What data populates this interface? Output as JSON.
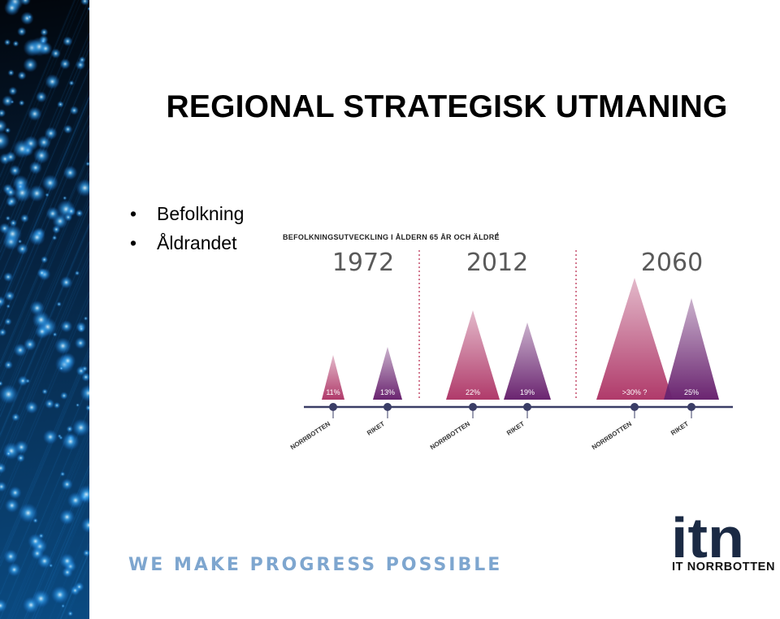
{
  "slide": {
    "title": "REGIONAL STRATEGISK UTMANING",
    "bullets": [
      "Befolkning",
      "Åldrandet"
    ],
    "tagline": "WE MAKE PROGRESS POSSIBLE",
    "logo_text": "itn",
    "logo_subtext": "IT NORRBOTTEN"
  },
  "colors": {
    "norrbotten": "#b03a6a",
    "riket": "#6a2470",
    "axis": "#3a3d66",
    "accent_blue": "#1e90e0"
  },
  "icons": {
    "side_image": "fiber-optic-lights-image",
    "logo": "itn-logo-icon"
  },
  "chart_data": {
    "type": "bar",
    "title": "BEFOLKNINGSUTVECKLING I ÅLDERN 65 ÅR OCH ÄLDRE",
    "title_marker": "4",
    "groups": [
      {
        "year": "1972",
        "items": [
          {
            "name": "NORRBOTTEN",
            "value": 11,
            "label": "11%"
          },
          {
            "name": "RIKET",
            "value": 13,
            "label": "13%"
          }
        ]
      },
      {
        "year": "2012",
        "items": [
          {
            "name": "NORRBOTTEN",
            "value": 22,
            "label": "22%"
          },
          {
            "name": "RIKET",
            "value": 19,
            "label": "19%"
          }
        ]
      },
      {
        "year": "2060",
        "items": [
          {
            "name": "NORRBOTTEN",
            "value": 30,
            "label": ">30% ?"
          },
          {
            "name": "RIKET",
            "value": 25,
            "label": "25%"
          }
        ]
      }
    ],
    "ylim": [
      0,
      32
    ],
    "grid": false,
    "legend": "none"
  }
}
